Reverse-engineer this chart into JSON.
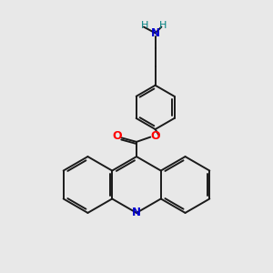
{
  "background_color": "#e8e8e8",
  "bond_color": "#1a1a1a",
  "nitrogen_color": "#0000cd",
  "oxygen_color": "#ff0000",
  "nh2_color": "#008080",
  "line_width": 1.4,
  "figsize": [
    3.0,
    3.0
  ],
  "dpi": 100,
  "xlim": [
    0,
    10
  ],
  "ylim": [
    0,
    10
  ]
}
